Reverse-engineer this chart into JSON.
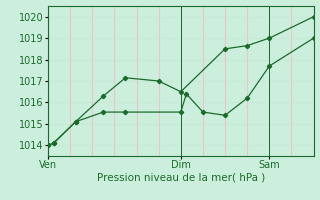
{
  "xlabel": "Pression niveau de la mer( hPa )",
  "bg_color": "#cceedd",
  "grid_color_h": "#c8e8d8",
  "grid_color_v": "#e8c8c8",
  "line_color": "#1a6b2a",
  "ylim": [
    1013.5,
    1020.5
  ],
  "yticks": [
    1014,
    1015,
    1016,
    1017,
    1018,
    1019,
    1020
  ],
  "xlim": [
    0,
    48
  ],
  "xtick_positions": [
    0,
    24,
    40
  ],
  "xtick_labels": [
    "Ven",
    "Dim",
    "Sam"
  ],
  "vline_positions": [
    0,
    24,
    40
  ],
  "series1_x": [
    0,
    1,
    5,
    10,
    14,
    24,
    25,
    28,
    32,
    36,
    40,
    48
  ],
  "series1_y": [
    1014.0,
    1014.1,
    1015.1,
    1015.55,
    1015.55,
    1015.55,
    1016.4,
    1015.55,
    1015.4,
    1016.2,
    1017.7,
    1019.0
  ],
  "series2_x": [
    0,
    1,
    5,
    10,
    14,
    20,
    24,
    32,
    36,
    40,
    48
  ],
  "series2_y": [
    1014.0,
    1014.1,
    1015.1,
    1016.3,
    1017.15,
    1017.0,
    1016.5,
    1018.5,
    1018.65,
    1019.0,
    1020.0
  ]
}
